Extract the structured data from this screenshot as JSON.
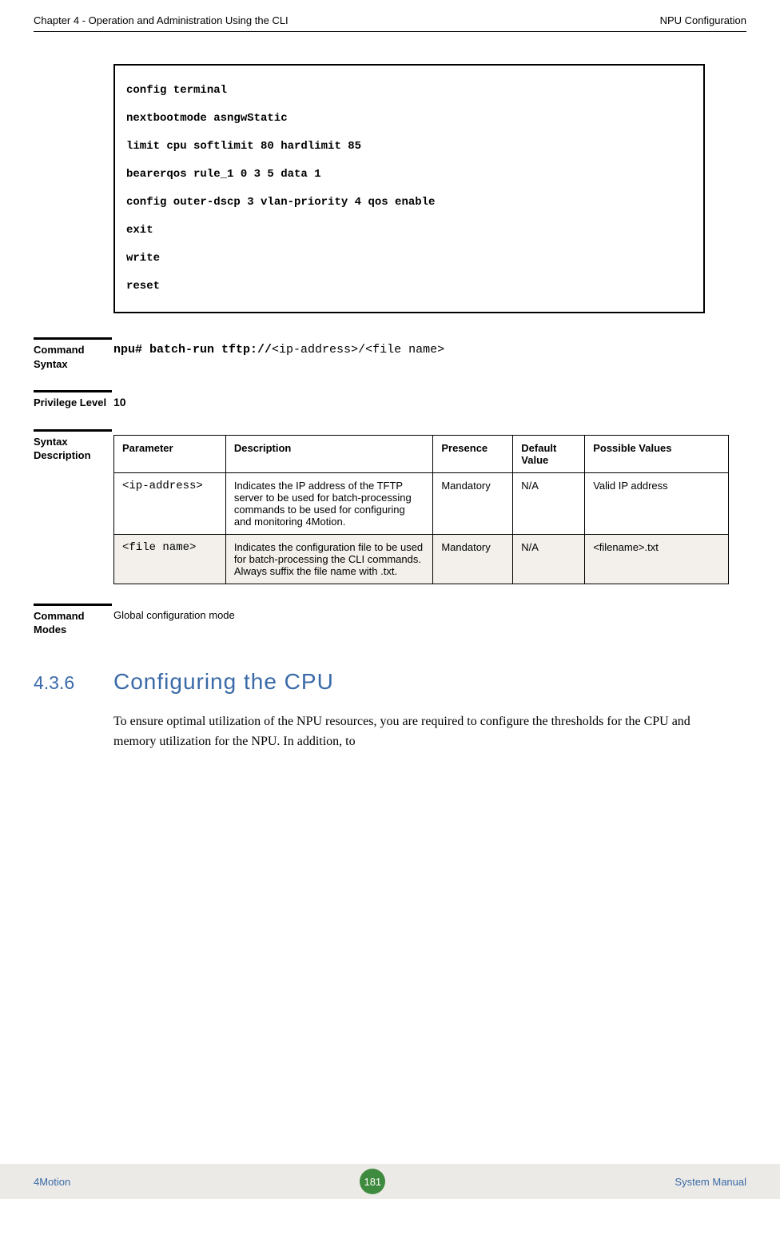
{
  "header": {
    "left": "Chapter 4 - Operation and Administration Using the CLI",
    "right": "NPU Configuration"
  },
  "codebox_lines": [
    "config terminal",
    "nextbootmode asngwStatic",
    "limit cpu softlimit 80 hardlimit 85",
    "bearerqos rule_1 0 3 5 data 1",
    "config outer-dscp 3 vlan-priority 4 qos enable",
    "exit",
    "write",
    "reset"
  ],
  "command_syntax": {
    "label": "Command Syntax",
    "bold_part": "npu# batch-run tftp://",
    "rest_part": "<ip-address>/<file name>"
  },
  "privilege": {
    "label": "Privilege Level",
    "value": "10"
  },
  "syntax_desc": {
    "label": "Syntax Description",
    "columns": [
      "Parameter",
      "Description",
      "Presence",
      "Default Value",
      "Possible Values"
    ],
    "rows": [
      {
        "param": "<ip-address>",
        "desc": "Indicates the IP address of the TFTP server to be used for batch-processing commands to be used for configuring and monitoring 4Motion.",
        "presence": "Mandatory",
        "default": "N/A",
        "possible": "Valid IP address",
        "alt": false
      },
      {
        "param": "<file name>",
        "desc": "Indicates the configuration file to be used for batch-processing the CLI commands. Always suffix the file name with .txt.",
        "presence": "Mandatory",
        "default": "N/A",
        "possible": "<filename>.txt",
        "alt": true
      }
    ]
  },
  "command_modes": {
    "label": "Command Modes",
    "value": "Global configuration mode"
  },
  "section_heading": {
    "number": "4.3.6",
    "title": "Configuring the CPU"
  },
  "body_paragraph": "To ensure optimal utilization of the NPU resources, you are required to configure the thresholds for the CPU and memory utilization for the NPU. In addition, to",
  "footer": {
    "left": "4Motion",
    "page": "181",
    "right": "System Manual"
  },
  "styles": {
    "col_widths": [
      "140px",
      "260px",
      "100px",
      "90px",
      "180px"
    ]
  }
}
